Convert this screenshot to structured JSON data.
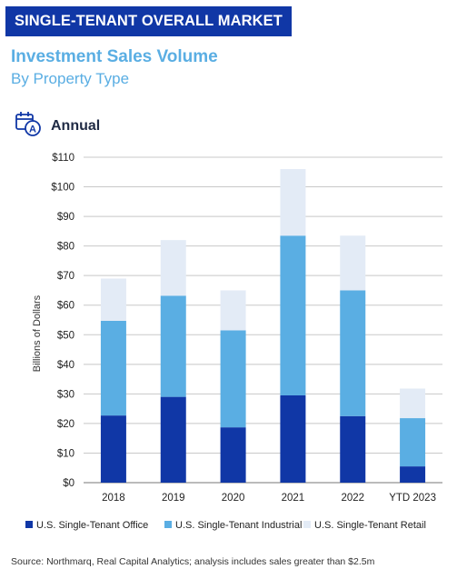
{
  "header": {
    "banner": "SINGLE-TENANT OVERALL MARKET",
    "title": "Investment Sales Volume",
    "subtitle": "By Property Type",
    "period_label": "Annual",
    "period_icon": "calendar-annual-icon"
  },
  "footer": {
    "source": "Source: Northmarq, Real Capital Analytics; analysis includes sales greater than $2.5m"
  },
  "colors": {
    "banner": "#1037a6",
    "title": "#5aaee3",
    "office": "#1037a6",
    "industrial": "#5aaee3",
    "retail": "#e3ebf6"
  },
  "chart_data": {
    "type": "bar",
    "stacked": true,
    "categories": [
      "2018",
      "2019",
      "2020",
      "2021",
      "2022",
      "YTD 2023"
    ],
    "series": [
      {
        "name": "U.S. Single-Tenant Office",
        "values": [
          22.7,
          29.0,
          18.7,
          29.5,
          22.5,
          5.5
        ],
        "color": "#1037a6"
      },
      {
        "name": "U.S. Single-Tenant Industrial",
        "values": [
          32.0,
          34.2,
          32.8,
          54.0,
          42.5,
          16.3
        ],
        "color": "#5aaee3"
      },
      {
        "name": "U.S. Single-Tenant Retail",
        "values": [
          14.3,
          18.8,
          13.5,
          22.5,
          18.5,
          10.0
        ],
        "color": "#e3ebf6"
      }
    ],
    "ylabel": "Billions of Dollars",
    "ylim": [
      0,
      110
    ],
    "yticks": [
      0,
      10,
      20,
      30,
      40,
      50,
      60,
      70,
      80,
      90,
      100,
      110
    ],
    "ytick_labels": [
      "$0",
      "$10",
      "$20",
      "$30",
      "$40",
      "$50",
      "$60",
      "$70",
      "$80",
      "$90",
      "$100",
      "$110"
    ],
    "grid": true,
    "legend_position": "bottom"
  }
}
